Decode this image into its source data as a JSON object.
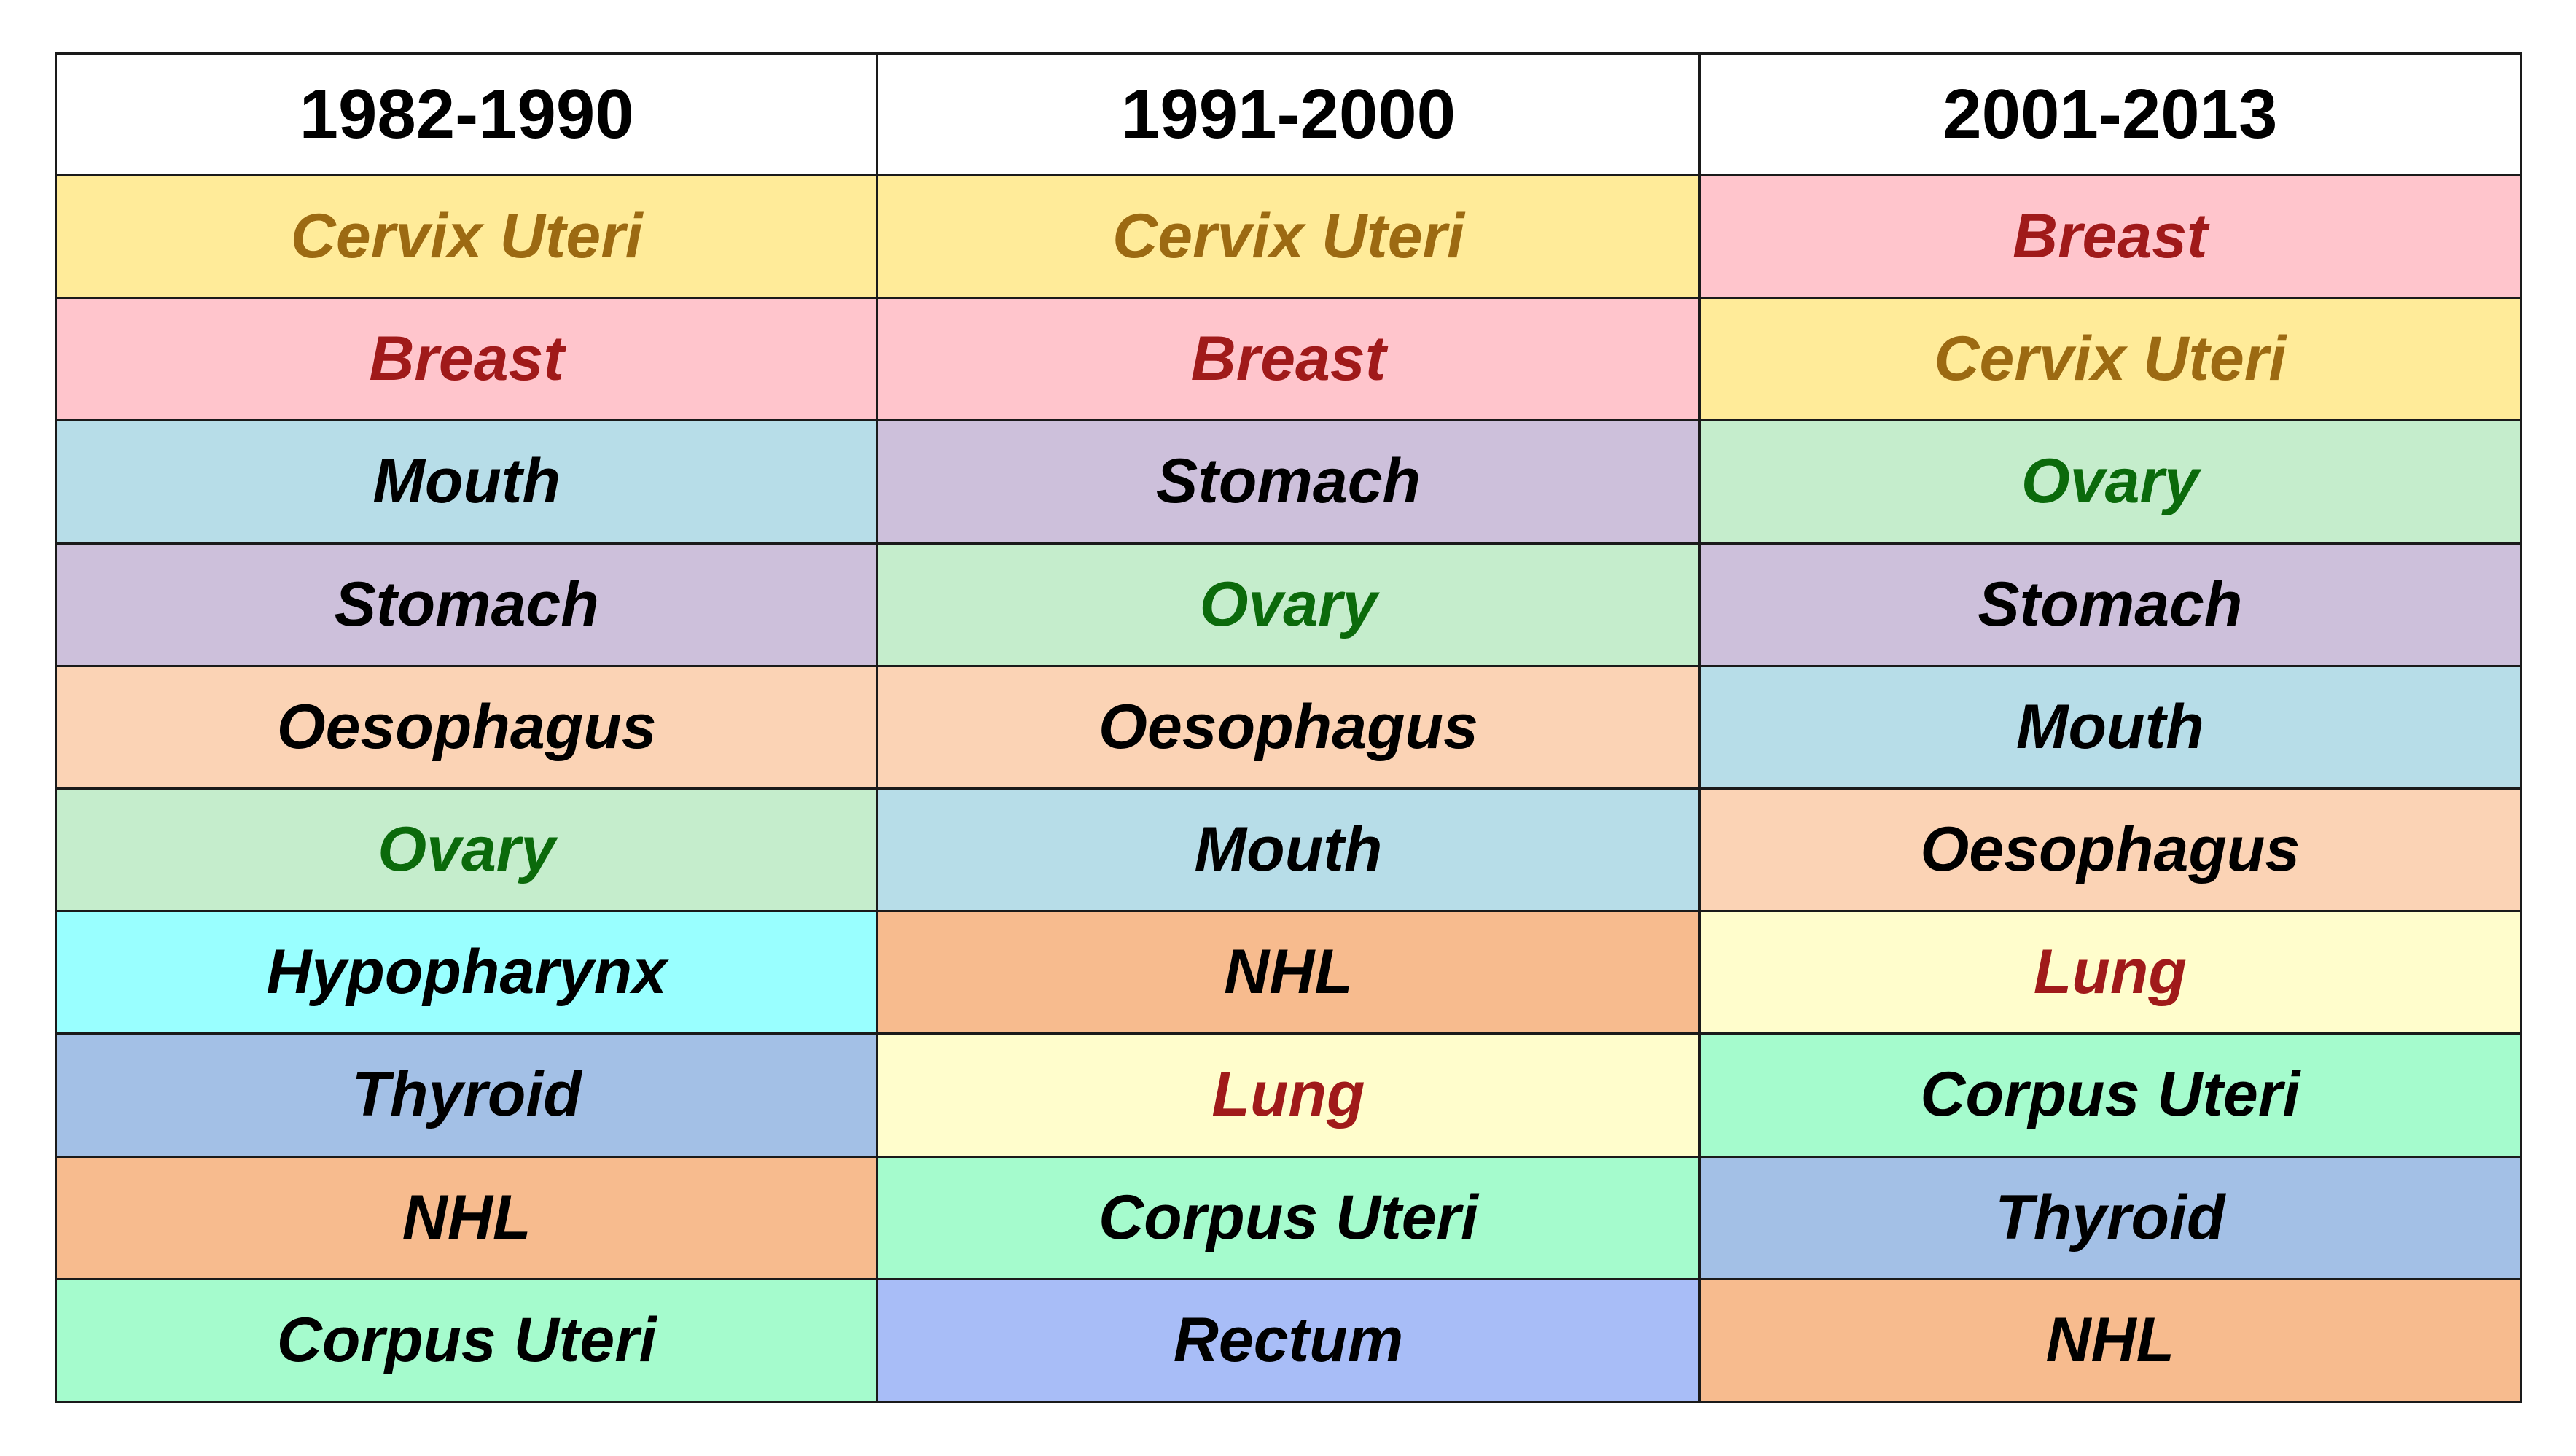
{
  "chart_data": {
    "type": "table",
    "columns": [
      "1982-1990",
      "1991-2000",
      "2001-2013"
    ],
    "rows": [
      [
        "Cervix Uteri",
        "Cervix Uteri",
        "Breast"
      ],
      [
        "Breast",
        "Breast",
        "Cervix Uteri"
      ],
      [
        "Mouth",
        "Stomach",
        "Ovary"
      ],
      [
        "Stomach",
        "Ovary",
        "Stomach"
      ],
      [
        "Oesophagus",
        "Oesophagus",
        "Mouth"
      ],
      [
        "Ovary",
        "Mouth",
        "Oesophagus"
      ],
      [
        "Hypopharynx",
        "NHL",
        "Lung"
      ],
      [
        "Thyroid",
        "Lung",
        "Corpus Uteri"
      ],
      [
        "NHL",
        "Corpus Uteri",
        "Thyroid"
      ],
      [
        "Corpus Uteri",
        "Rectum",
        "NHL"
      ]
    ],
    "site_colors": {
      "Cervix Uteri": {
        "bg": "#FFEB99",
        "fg": "#9C6A12"
      },
      "Breast": {
        "bg": "#FFC5CC",
        "fg": "#A01A1A"
      },
      "Mouth": {
        "bg": "#B7DDE8",
        "fg": "#000000"
      },
      "Stomach": {
        "bg": "#CDC0DB",
        "fg": "#000000"
      },
      "Oesophagus": {
        "bg": "#FBD3B5",
        "fg": "#000000"
      },
      "Ovary": {
        "bg": "#C5EDCC",
        "fg": "#0B6A0B"
      },
      "Hypopharynx": {
        "bg": "#99FFFF",
        "fg": "#000000"
      },
      "Thyroid": {
        "bg": "#A3C0E6",
        "fg": "#000000"
      },
      "NHL": {
        "bg": "#F7BB8E",
        "fg": "#000000"
      },
      "Corpus Uteri": {
        "bg": "#A5FBCD",
        "fg": "#000000"
      },
      "Lung": {
        "bg": "#FFFDCC",
        "fg": "#A01A1A"
      },
      "Rectum": {
        "bg": "#A8BDF7",
        "fg": "#000000"
      }
    }
  }
}
